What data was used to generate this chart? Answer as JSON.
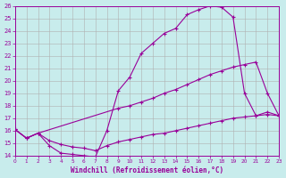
{
  "xlabel": "Windchill (Refroidissement éolien,°C)",
  "bg_color": "#c8ecec",
  "grid_color": "#b0b0b0",
  "line_color": "#990099",
  "xlim": [
    0,
    23
  ],
  "ylim": [
    14,
    26
  ],
  "xticks": [
    0,
    1,
    2,
    3,
    4,
    5,
    6,
    7,
    8,
    9,
    10,
    11,
    12,
    13,
    14,
    15,
    16,
    17,
    18,
    19,
    20,
    21,
    22,
    23
  ],
  "yticks": [
    14,
    15,
    16,
    17,
    18,
    19,
    20,
    21,
    22,
    23,
    24,
    25,
    26
  ],
  "line1_x": [
    0,
    1,
    2,
    3,
    4,
    5,
    6,
    7,
    8,
    9,
    10,
    11,
    12,
    13,
    14,
    15,
    16,
    17,
    18,
    19,
    20,
    21,
    22,
    23
  ],
  "line1_y": [
    16.1,
    15.4,
    15.8,
    14.8,
    14.2,
    14.1,
    14.0,
    13.9,
    16.0,
    19.2,
    20.3,
    22.2,
    23.0,
    23.8,
    24.2,
    25.3,
    25.7,
    26.0,
    25.9,
    25.1,
    19.0,
    17.2,
    17.5,
    17.2
  ],
  "line2_x": [
    0,
    1,
    2,
    9,
    10,
    11,
    12,
    13,
    14,
    15,
    16,
    17,
    18,
    19,
    20,
    21,
    22,
    23
  ],
  "line2_y": [
    16.1,
    15.4,
    15.8,
    17.8,
    18.0,
    18.3,
    18.6,
    19.0,
    19.3,
    19.7,
    20.1,
    20.5,
    20.8,
    21.1,
    21.3,
    21.5,
    19.0,
    17.2
  ],
  "line3_x": [
    0,
    1,
    2,
    3,
    4,
    5,
    6,
    7,
    8,
    9,
    10,
    11,
    12,
    13,
    14,
    15,
    16,
    17,
    18,
    19,
    20,
    21,
    22,
    23
  ],
  "line3_y": [
    16.1,
    15.4,
    15.8,
    15.2,
    14.9,
    14.7,
    14.6,
    14.4,
    14.8,
    15.1,
    15.3,
    15.5,
    15.7,
    15.8,
    16.0,
    16.2,
    16.4,
    16.6,
    16.8,
    17.0,
    17.1,
    17.2,
    17.3,
    17.2
  ]
}
